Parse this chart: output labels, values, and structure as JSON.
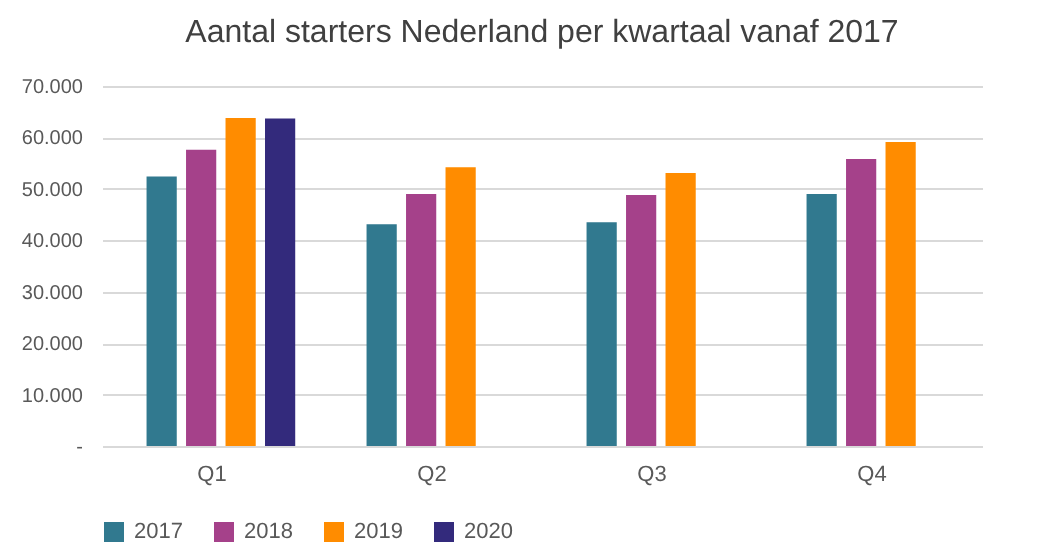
{
  "chart_data": {
    "type": "bar",
    "title": "Aantal starters Nederland per kwartaal vanaf 2017",
    "categories": [
      "Q1",
      "Q2",
      "Q3",
      "Q4"
    ],
    "series": [
      {
        "name": "2017",
        "color": "#31798f",
        "values": [
          52400,
          43100,
          43500,
          49000
        ]
      },
      {
        "name": "2018",
        "color": "#a5418a",
        "values": [
          57600,
          49000,
          48800,
          55800
        ]
      },
      {
        "name": "2019",
        "color": "#ff8c00",
        "values": [
          63800,
          54200,
          53100,
          59100
        ]
      },
      {
        "name": "2020",
        "color": "#332a7c",
        "values": [
          63700,
          null,
          null,
          null
        ]
      }
    ],
    "ylim": [
      0,
      70000
    ],
    "yticks": [
      {
        "value": 0,
        "label": "-"
      },
      {
        "value": 10000,
        "label": "10.000"
      },
      {
        "value": 20000,
        "label": "20.000"
      },
      {
        "value": 30000,
        "label": "30.000"
      },
      {
        "value": 40000,
        "label": "40.000"
      },
      {
        "value": 50000,
        "label": "50.000"
      },
      {
        "value": 60000,
        "label": "60.000"
      },
      {
        "value": 70000,
        "label": "70.000"
      }
    ],
    "grid": "y",
    "legend": "bottom"
  }
}
